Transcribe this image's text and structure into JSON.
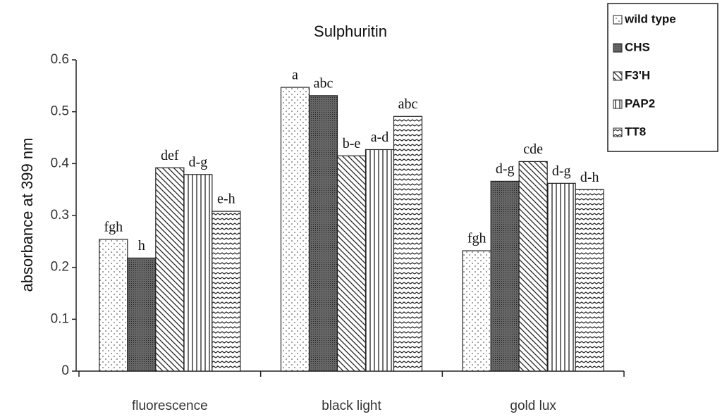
{
  "chart_data": {
    "type": "bar",
    "title": "Sulphuritin",
    "y_label": "absorbance at 399 nm",
    "categories": [
      "fluorescence",
      "black light",
      "gold lux"
    ],
    "series": [
      {
        "name": "wild type",
        "color": "#ffffff",
        "pattern": "dots",
        "values": [
          0.254,
          0.547,
          0.232
        ],
        "letters": [
          "fgh",
          "a",
          "fgh"
        ]
      },
      {
        "name": "CHS",
        "color": "#555555",
        "pattern": "dense",
        "values": [
          0.218,
          0.531,
          0.366
        ],
        "letters": [
          "h",
          "abc",
          "d-g"
        ]
      },
      {
        "name": "F3'H",
        "color": "#ffffff",
        "pattern": "diagonal",
        "values": [
          0.392,
          0.415,
          0.404
        ],
        "letters": [
          "def",
          "b-e",
          "cde"
        ]
      },
      {
        "name": "PAP2",
        "color": "#ffffff",
        "pattern": "vertical",
        "values": [
          0.379,
          0.427,
          0.362
        ],
        "letters": [
          "d-g",
          "a-d",
          "d-g"
        ]
      },
      {
        "name": "TT8",
        "color": "#ffffff",
        "pattern": "wavy",
        "values": [
          0.308,
          0.491,
          0.35
        ],
        "letters": [
          "e-h",
          "abc",
          "d-h"
        ]
      }
    ],
    "ylim": [
      0,
      0.6
    ],
    "yticks": [
      0,
      0.1,
      0.2,
      0.3,
      0.4,
      0.5,
      0.6
    ],
    "legend": "top-right"
  }
}
